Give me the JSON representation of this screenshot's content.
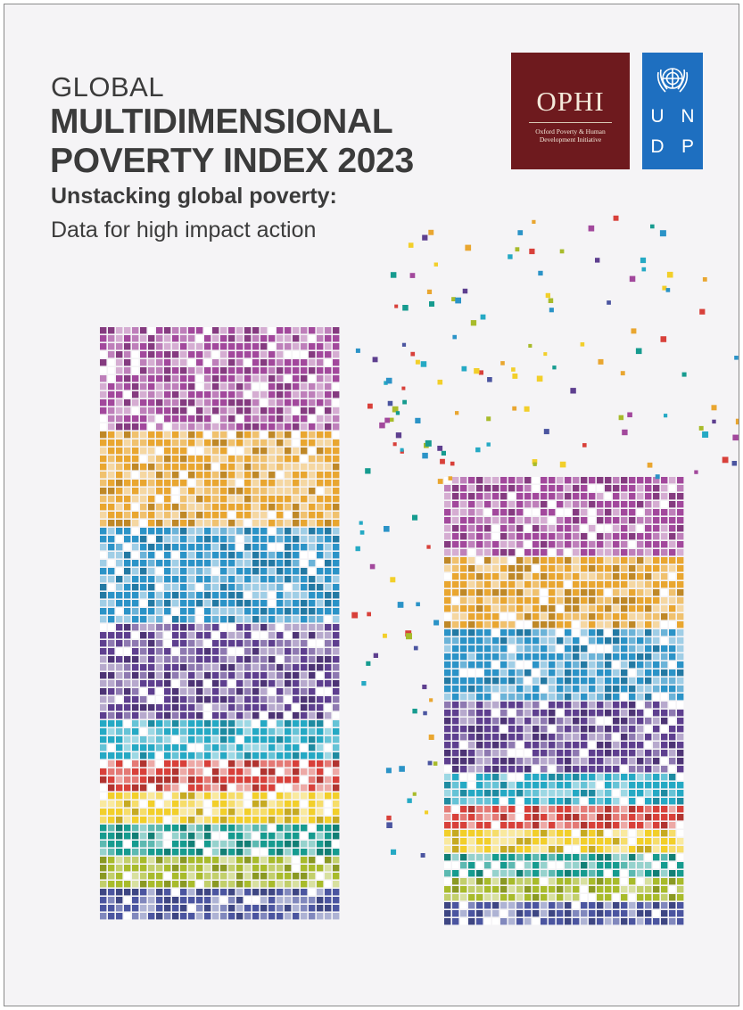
{
  "cover": {
    "title_line_1": "GLOBAL",
    "title_line_2": "MULTIDIMENSIONAL",
    "title_line_3": "POVERTY INDEX 2023",
    "subtitle_bold": "Unstacking global poverty:",
    "subtitle_regular": "Data for high impact action"
  },
  "logos": {
    "ophi": {
      "name": "OPHI",
      "tagline_1": "Oxford Poverty & Human",
      "tagline_2": "Development Initiative",
      "color": "#6e1a1e"
    },
    "undp": {
      "letters": [
        "U",
        "N",
        "D",
        "P"
      ],
      "emblem_icon": "un-emblem-icon",
      "color": "#1e6fc0"
    }
  },
  "palette": {
    "magenta": "#a2489c",
    "orange": "#e9a630",
    "blue": "#2b93c7",
    "purple": "#5e3f8f",
    "cyan": "#25a9c4",
    "red": "#d8403a",
    "yellow": "#f2cf2a",
    "teal": "#169b8f",
    "lime": "#a8bb2b",
    "indigo": "#4b55a0"
  }
}
